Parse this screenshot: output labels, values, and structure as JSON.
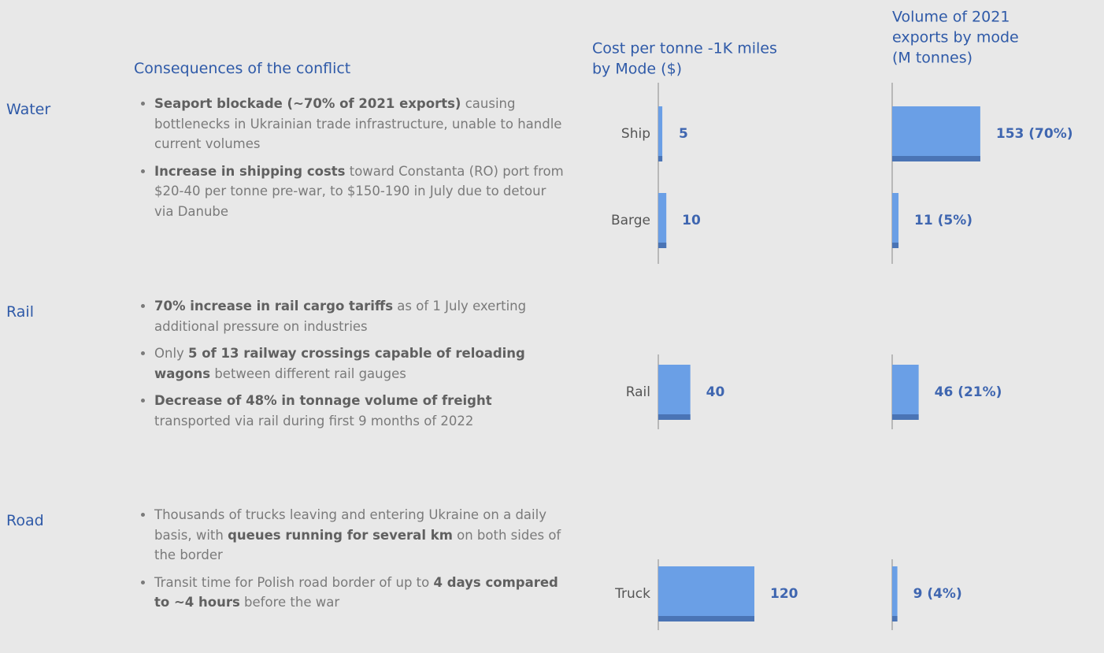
{
  "header": "Consequences of the conflict",
  "sections": [
    {
      "label": "Water",
      "bullets": [
        [
          {
            "text": "Seaport blockade (~70% of 2021 exports)",
            "bold": true
          },
          {
            "text": " causing bottlenecks in Ukrainian trade infrastructure, unable to handle current volumes",
            "bold": false
          }
        ],
        [
          {
            "text": "Increase in shipping costs",
            "bold": true
          },
          {
            "text": " toward Constanta (RO) port from $20-40 per tonne pre-war, to $150-190 in July due to detour via Danube",
            "bold": false
          }
        ]
      ]
    },
    {
      "label": "Rail",
      "bullets": [
        [
          {
            "text": "70% increase in rail cargo tariffs",
            "bold": true
          },
          {
            "text": " as of 1 July exerting additional pressure on industries",
            "bold": false
          }
        ],
        [
          {
            "text": "Only ",
            "bold": false
          },
          {
            "text": "5 of 13 railway crossings capable of reloading wagons",
            "bold": true
          },
          {
            "text": " between different rail gauges",
            "bold": false
          }
        ],
        [
          {
            "text": "Decrease of 48% in tonnage volume of freight",
            "bold": true
          },
          {
            "text": " transported via rail during first 9 months of 2022",
            "bold": false
          }
        ]
      ]
    },
    {
      "label": "Road",
      "bullets": [
        [
          {
            "text": "Thousands of trucks leaving and entering Ukraine on a daily basis, with ",
            "bold": false
          },
          {
            "text": "queues running for several km",
            "bold": true
          },
          {
            "text": " on both sides of the border",
            "bold": false
          }
        ],
        [
          {
            "text": "Transit time for Polish road border of up to ",
            "bold": false
          },
          {
            "text": "4 days compared to ~4 hours",
            "bold": true
          },
          {
            "text": " before the war",
            "bold": false
          }
        ]
      ]
    }
  ],
  "chart_data": [
    {
      "type": "bar",
      "orientation": "horizontal",
      "title": [
        "Cost per tonne -1K miles",
        "by Mode ($)"
      ],
      "categories": [
        "Ship",
        "Barge",
        "Rail",
        "Truck"
      ],
      "values": [
        5,
        10,
        40,
        120
      ],
      "color": "#6a9fe6",
      "xlim": [
        0,
        120
      ]
    },
    {
      "type": "bar",
      "orientation": "horizontal",
      "title": [
        "Volume of 2021",
        "exports by mode",
        "(M tonnes)"
      ],
      "values": [
        153,
        11,
        46,
        9
      ],
      "value_labels": [
        "153 (70%)",
        "11 (5%)",
        "46 (21%)",
        "9 (4%)"
      ],
      "color": "#6a9fe6",
      "xlim": [
        0,
        160
      ]
    }
  ]
}
